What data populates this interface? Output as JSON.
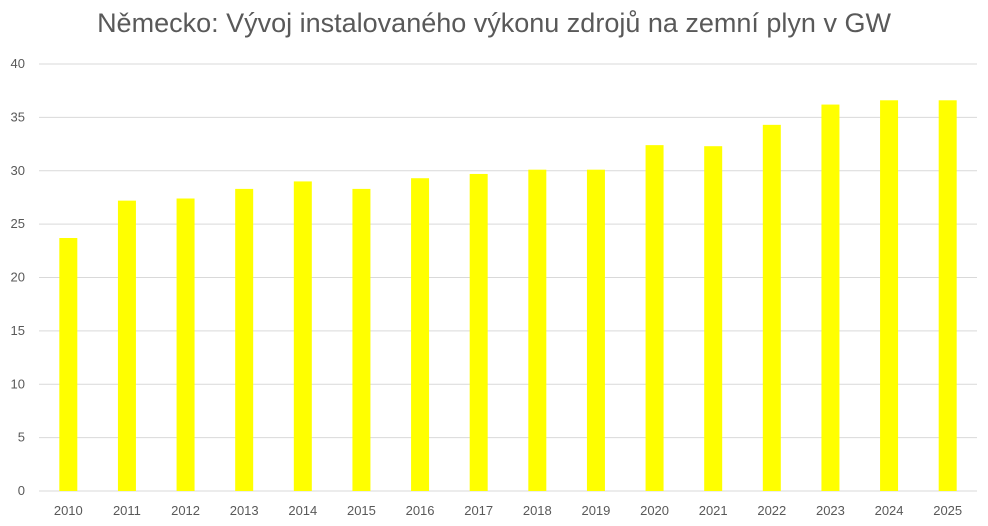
{
  "chart_data": {
    "type": "bar",
    "title": "Německo: Vývoj instalovaného výkonu zdrojů na zemní plyn v GW",
    "categories": [
      "2010",
      "2011",
      "2012",
      "2013",
      "2014",
      "2015",
      "2016",
      "2017",
      "2018",
      "2019",
      "2020",
      "2021",
      "2022",
      "2023",
      "2024",
      "2025"
    ],
    "values": [
      23.7,
      27.2,
      27.4,
      28.3,
      29.0,
      28.3,
      29.3,
      29.7,
      30.1,
      30.1,
      32.4,
      32.3,
      34.3,
      36.2,
      36.6,
      36.6
    ],
    "ylim": [
      0,
      40
    ],
    "yticks": [
      0,
      5,
      10,
      15,
      20,
      25,
      30,
      35,
      40
    ],
    "xlabel": "",
    "ylabel": "",
    "grid": true,
    "bar_color": "#FFFF00",
    "grid_color": "#D9D9D9",
    "text_color": "#595959"
  }
}
